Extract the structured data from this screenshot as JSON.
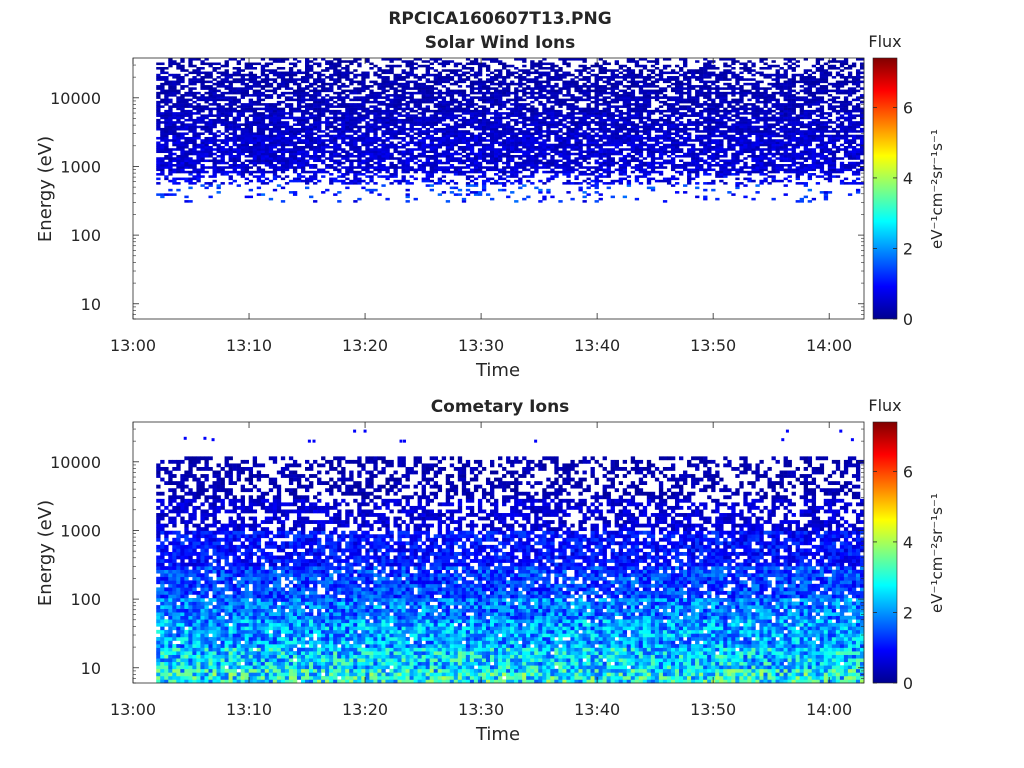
{
  "figure_title": "RPCICA160607T13.PNG",
  "chart_data": [
    {
      "type": "heatmap",
      "title": "Solar Wind Ions",
      "xlabel": "Time",
      "ylabel": "Energy (eV)",
      "x_ticks": [
        "13:00",
        "13:10",
        "13:20",
        "13:30",
        "13:40",
        "13:50",
        "14:00"
      ],
      "xlim": [
        "13:00",
        "14:03"
      ],
      "data_start": "13:02",
      "y_scale": "log",
      "y_ticks": [
        "10",
        "100",
        "1000",
        "10000"
      ],
      "ylim": [
        6,
        38000
      ],
      "colorbar": {
        "title": "Flux",
        "label": "eV⁻¹cm⁻²sr⁻¹s⁻¹",
        "ticks": [
          "0",
          "2",
          "4",
          "6"
        ],
        "range": [
          0,
          7.4
        ],
        "colormap": "jet"
      },
      "profile": {
        "energy_bands_eV": [
          300,
          550,
          800,
          1500,
          3000,
          6000,
          12000,
          25000,
          38000
        ],
        "fill_fraction": [
          0.12,
          0.45,
          0.75,
          0.8,
          0.78,
          0.72,
          0.65,
          0.45
        ],
        "typical_flux": [
          1.2,
          0.8,
          0.6,
          0.6,
          0.5,
          0.4,
          0.35,
          0.3
        ]
      },
      "grid": false
    },
    {
      "type": "heatmap",
      "title": "Cometary Ions",
      "xlabel": "Time",
      "ylabel": "Energy (eV)",
      "x_ticks": [
        "13:00",
        "13:10",
        "13:20",
        "13:30",
        "13:40",
        "13:50",
        "14:00"
      ],
      "xlim": [
        "13:00",
        "14:03"
      ],
      "data_start": "13:02",
      "y_scale": "log",
      "y_ticks": [
        "10",
        "100",
        "1000",
        "10000"
      ],
      "ylim": [
        6,
        38000
      ],
      "colorbar": {
        "title": "Flux",
        "label": "eV⁻¹cm⁻²sr⁻¹s⁻¹",
        "ticks": [
          "0",
          "2",
          "4",
          "6"
        ],
        "range": [
          0,
          7.4
        ],
        "colormap": "jet"
      },
      "profile": {
        "energy_bands_eV": [
          6,
          10,
          20,
          50,
          100,
          300,
          1000,
          3000,
          12000
        ],
        "fill_fraction": [
          0.99,
          0.98,
          0.95,
          0.93,
          0.88,
          0.8,
          0.6,
          0.45
        ],
        "typical_flux": [
          2.8,
          2.5,
          2.1,
          1.8,
          1.4,
          1.0,
          0.6,
          0.35
        ]
      },
      "sparse_high_energy_points": [
        {
          "time": "13:04.5",
          "energy": 22000
        },
        {
          "time": "13:06.2",
          "energy": 22000
        },
        {
          "time": "13:06.9",
          "energy": 21000
        },
        {
          "time": "13:15.2",
          "energy": 20000
        },
        {
          "time": "13:15.6",
          "energy": 20000
        },
        {
          "time": "13:19.1",
          "energy": 28000
        },
        {
          "time": "13:20.0",
          "energy": 28000
        },
        {
          "time": "13:23.1",
          "energy": 20000
        },
        {
          "time": "13:23.4",
          "energy": 20000
        },
        {
          "time": "13:34.7",
          "energy": 20000
        },
        {
          "time": "13:56.0",
          "energy": 21000
        },
        {
          "time": "13:56.4",
          "energy": 28000
        },
        {
          "time": "14:01.0",
          "energy": 28000
        },
        {
          "time": "14:02.0",
          "energy": 21000
        }
      ],
      "grid": false
    }
  ]
}
